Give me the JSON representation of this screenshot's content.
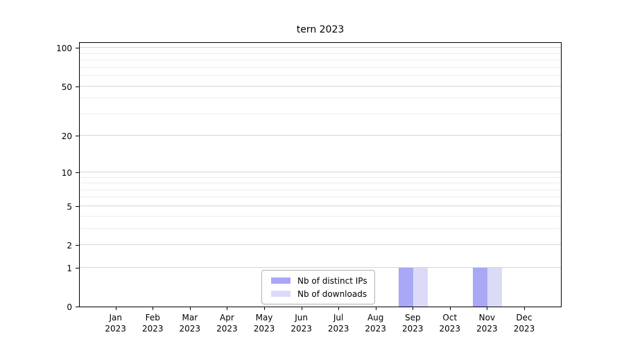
{
  "chart_data": {
    "type": "bar",
    "title": "tern 2023",
    "categories": [
      "Jan 2023",
      "Feb 2023",
      "Mar 2023",
      "Apr 2023",
      "May 2023",
      "Jun 2023",
      "Jul 2023",
      "Aug 2023",
      "Sep 2023",
      "Oct 2023",
      "Nov 2023",
      "Dec 2023"
    ],
    "series": [
      {
        "name": "Nb of distinct IPs",
        "color": "#a8a8f6",
        "values": [
          0,
          0,
          0,
          0,
          0,
          0,
          0,
          0,
          1,
          0,
          1,
          0
        ]
      },
      {
        "name": "Nb of downloads",
        "color": "#dbdbf8",
        "values": [
          0,
          0,
          0,
          0,
          0,
          0,
          0,
          0,
          1,
          0,
          1,
          0
        ]
      }
    ],
    "xlabel": "",
    "ylabel": "",
    "yscale": "log1p",
    "ylim": [
      0,
      112
    ],
    "yticks": [
      0,
      1,
      2,
      5,
      10,
      20,
      50,
      100
    ],
    "yticks_minor": [
      3,
      4,
      6,
      7,
      8,
      9,
      30,
      40,
      60,
      70,
      80,
      90
    ],
    "grid": "horizontal",
    "legend_position": "bottom-center-inside"
  }
}
